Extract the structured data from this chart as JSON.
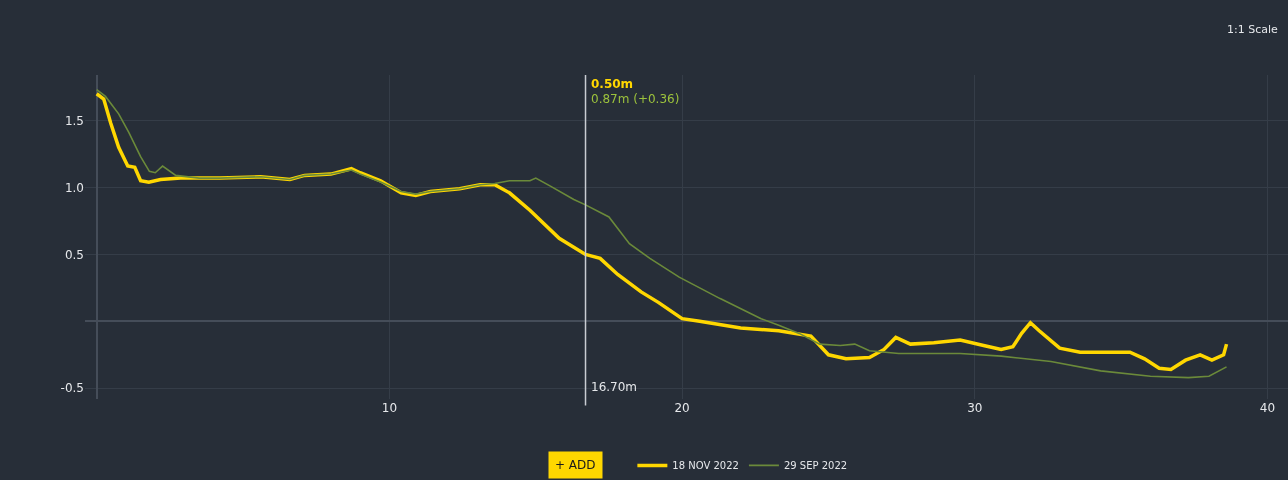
{
  "chart_data": {
    "type": "line",
    "series": [
      {
        "name": "18 NOV 2022",
        "color": "#ffd700",
        "x": [
          0,
          0.24,
          0.48,
          0.75,
          1.06,
          1.3,
          1.5,
          1.78,
          2.18,
          2.87,
          4.2,
          5.6,
          6.6,
          7.1,
          8.0,
          8.7,
          9.0,
          9.7,
          10.4,
          10.9,
          11.4,
          12.4,
          13.1,
          13.6,
          14.1,
          14.8,
          15.8,
          16.7,
          17.2,
          17.8,
          18.6,
          19.2,
          20.0,
          20.6,
          22.0,
          23.3,
          24.4,
          25.0,
          25.6,
          26.4,
          26.9,
          27.3,
          27.8,
          28.6,
          29.5,
          30.3,
          30.9,
          31.3,
          31.6,
          31.9,
          32.2,
          32.9,
          33.6,
          34.3,
          35.3,
          35.8,
          36.3,
          36.7,
          37.2,
          37.7,
          38.1,
          38.5,
          38.6
        ],
        "values": [
          1.7,
          1.66,
          1.48,
          1.3,
          1.16,
          1.15,
          1.05,
          1.04,
          1.06,
          1.07,
          1.07,
          1.08,
          1.06,
          1.09,
          1.1,
          1.14,
          1.11,
          1.05,
          0.96,
          0.94,
          0.97,
          0.99,
          1.02,
          1.02,
          0.96,
          0.83,
          0.62,
          0.5,
          0.47,
          0.35,
          0.22,
          0.14,
          0.02,
          0.0,
          -0.05,
          -0.07,
          -0.11,
          -0.25,
          -0.28,
          -0.27,
          -0.21,
          -0.12,
          -0.17,
          -0.16,
          -0.14,
          -0.18,
          -0.21,
          -0.19,
          -0.09,
          -0.01,
          -0.07,
          -0.2,
          -0.23,
          -0.23,
          -0.23,
          -0.28,
          -0.35,
          -0.36,
          -0.29,
          -0.25,
          -0.29,
          -0.25,
          -0.17
        ]
      },
      {
        "name": "29 SEP 2022",
        "color": "#6b8a3a",
        "x": [
          0,
          0.3,
          0.75,
          1.1,
          1.5,
          1.8,
          2.0,
          2.25,
          2.7,
          3.5,
          4.2,
          5.6,
          6.6,
          7.1,
          8.0,
          8.7,
          9.0,
          9.7,
          10.4,
          10.9,
          11.4,
          12.4,
          13.1,
          13.6,
          14.1,
          14.8,
          15.0,
          15.5,
          16.3,
          16.7,
          17.5,
          18.2,
          18.9,
          19.9,
          21.3,
          22.7,
          23.3,
          24.0,
          24.7,
          25.4,
          25.9,
          26.4,
          27.4,
          29.5,
          30.9,
          32.6,
          34.3,
          36.0,
          37.3,
          38.0,
          38.6
        ],
        "values": [
          1.73,
          1.68,
          1.55,
          1.41,
          1.23,
          1.12,
          1.11,
          1.16,
          1.09,
          1.07,
          1.07,
          1.08,
          1.06,
          1.09,
          1.1,
          1.13,
          1.1,
          1.04,
          0.97,
          0.95,
          0.97,
          0.99,
          1.02,
          1.03,
          1.05,
          1.05,
          1.07,
          1.01,
          0.91,
          0.87,
          0.78,
          0.58,
          0.47,
          0.33,
          0.17,
          0.02,
          -0.03,
          -0.09,
          -0.17,
          -0.18,
          -0.17,
          -0.22,
          -0.24,
          -0.24,
          -0.26,
          -0.3,
          -0.37,
          -0.41,
          -0.42,
          -0.41,
          -0.34
        ]
      }
    ],
    "xlim": [
      -0.4,
      40.7
    ],
    "xticks": [
      {
        "value": 0,
        "label": null
      },
      10,
      20,
      30,
      40
    ],
    "ylim": [
      -0.58,
      1.84
    ],
    "yticks": [
      -0.5,
      {
        "value": 0,
        "label": null
      },
      0.5,
      {
        "value": 1,
        "label": "1.0"
      },
      1.5
    ],
    "grid": true,
    "legend": "bottom",
    "marker": "none",
    "line_style": "solid",
    "ref_lines": [
      {
        "axis": "x",
        "value": 16.7,
        "label": "16.70m",
        "color": "#c8ccd2"
      }
    ],
    "annotations": [
      "0.50m",
      "0.87m (+0.36)",
      "1:1 Scale",
      "+ ADD"
    ]
  }
}
